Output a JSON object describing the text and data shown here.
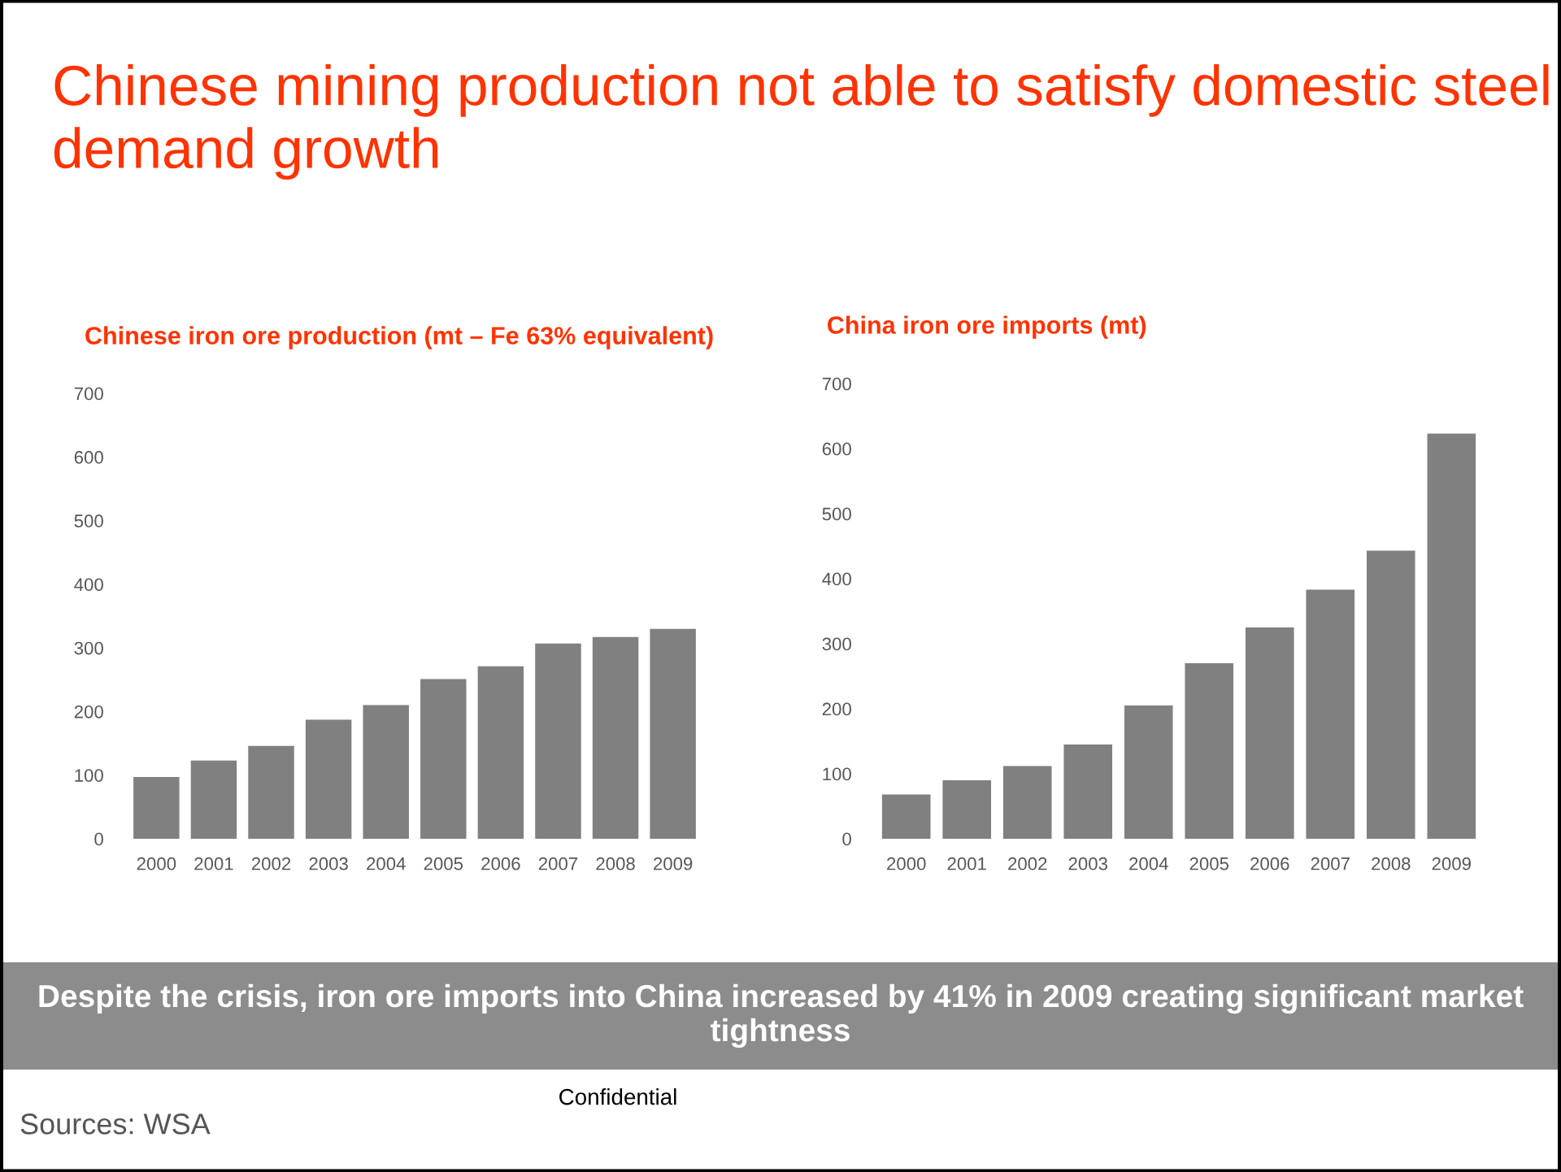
{
  "chart_data": [
    {
      "type": "other",
      "title": "Chinese mining production not able to satisfy domestic steel demand growth",
      "annotations": [
        "Despite the crisis, iron ore imports into China increased by 41% in 2009 creating significant market tightness",
        "Confidential",
        "Sources: WSA"
      ]
    },
    {
      "type": "bar",
      "title": "Chinese iron ore production (mt – Fe 63% equivalent)",
      "categories": [
        "2000",
        "2001",
        "2002",
        "2003",
        "2004",
        "2005",
        "2006",
        "2007",
        "2008",
        "2009"
      ],
      "values": [
        97,
        123,
        146,
        187,
        210,
        251,
        271,
        307,
        317,
        330
      ],
      "color": "#808080",
      "ylim": [
        0,
        700
      ],
      "yticks": [
        0,
        100,
        200,
        300,
        400,
        500,
        600,
        700
      ],
      "grid": false,
      "legend": false
    },
    {
      "type": "bar",
      "title": "China iron ore imports (mt)",
      "categories": [
        "2000",
        "2001",
        "2002",
        "2003",
        "2004",
        "2005",
        "2006",
        "2007",
        "2008",
        "2009"
      ],
      "values": [
        68,
        90,
        112,
        145,
        205,
        270,
        325,
        383,
        443,
        623
      ],
      "color": "#808080",
      "ylim": [
        0,
        700
      ],
      "yticks": [
        0,
        100,
        200,
        300,
        400,
        500,
        600,
        700
      ],
      "grid": false,
      "legend": false
    }
  ]
}
